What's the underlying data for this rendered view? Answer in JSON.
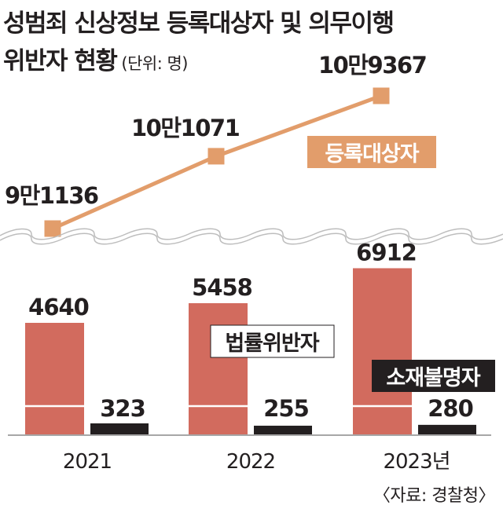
{
  "title_line1": "성범죄 신상정보 등록대상자 및 의무이행",
  "title_line2": "위반자 현황",
  "unit": "(단위: 명)",
  "source": "〈자료: 경찰청〉",
  "colors": {
    "registered": "#e29d6b",
    "law_violator": "#d26b5e",
    "unknown_location": "#231f20",
    "text": "#231f20",
    "wave": "#bdbdbd"
  },
  "chart_data": [
    {
      "type": "line",
      "categories": [
        "2021",
        "2022",
        "2023"
      ],
      "series": [
        {
          "name": "등록대상자",
          "values": [
            91136,
            101071,
            109367
          ],
          "labels": [
            "9만1136",
            "10만1071",
            "10만9367"
          ]
        }
      ]
    },
    {
      "type": "bar",
      "categories": [
        "2021",
        "2022",
        "2023년"
      ],
      "series": [
        {
          "name": "법률위반자",
          "values": [
            4640,
            5458,
            6912
          ],
          "labels": [
            "4640",
            "5458",
            "6912"
          ]
        },
        {
          "name": "소재불명자",
          "values": [
            323,
            255,
            280
          ],
          "labels": [
            "323",
            "255",
            "280"
          ]
        }
      ]
    }
  ]
}
